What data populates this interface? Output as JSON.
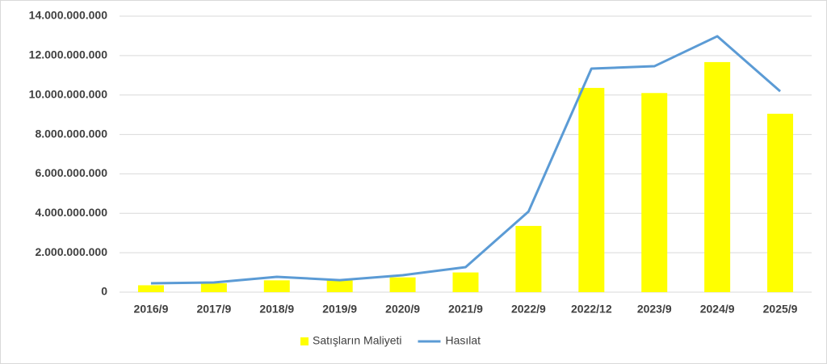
{
  "chart_data": {
    "type": "combo",
    "categories": [
      "2016/9",
      "2017/9",
      "2018/9",
      "2019/9",
      "2020/9",
      "2021/9",
      "2022/9",
      "2022/12",
      "2023/9",
      "2024/9",
      "2025/9"
    ],
    "series": [
      {
        "name": "Satışların Maliyeti",
        "type": "bar",
        "color": "#ffff00",
        "values": [
          350000000,
          450000000,
          600000000,
          600000000,
          750000000,
          1000000000,
          3360000000,
          10360000000,
          10100000000,
          11670000000,
          9050000000
        ]
      },
      {
        "name": "Hasılat",
        "type": "line",
        "color": "#5b9bd5",
        "values": [
          450000000,
          490000000,
          780000000,
          610000000,
          860000000,
          1270000000,
          4090000000,
          11340000000,
          11460000000,
          12980000000,
          10190000000
        ]
      }
    ],
    "ylim": [
      0,
      14000000000
    ],
    "yticks": [
      0,
      {
        "value": 2000000000,
        "label": "2.000.000.000"
      },
      {
        "value": 4000000000,
        "label": "4.000.000.000"
      },
      {
        "value": 6000000000,
        "label": "6.000.000.000"
      },
      {
        "value": 8000000000,
        "label": "8.000.000.000"
      },
      {
        "value": 10000000000,
        "label": "10.000.000.000"
      },
      {
        "value": 12000000000,
        "label": "12.000.000.000"
      },
      {
        "value": 14000000000,
        "label": "14.000.000.000"
      }
    ],
    "grid": true,
    "legend": "bottom"
  }
}
